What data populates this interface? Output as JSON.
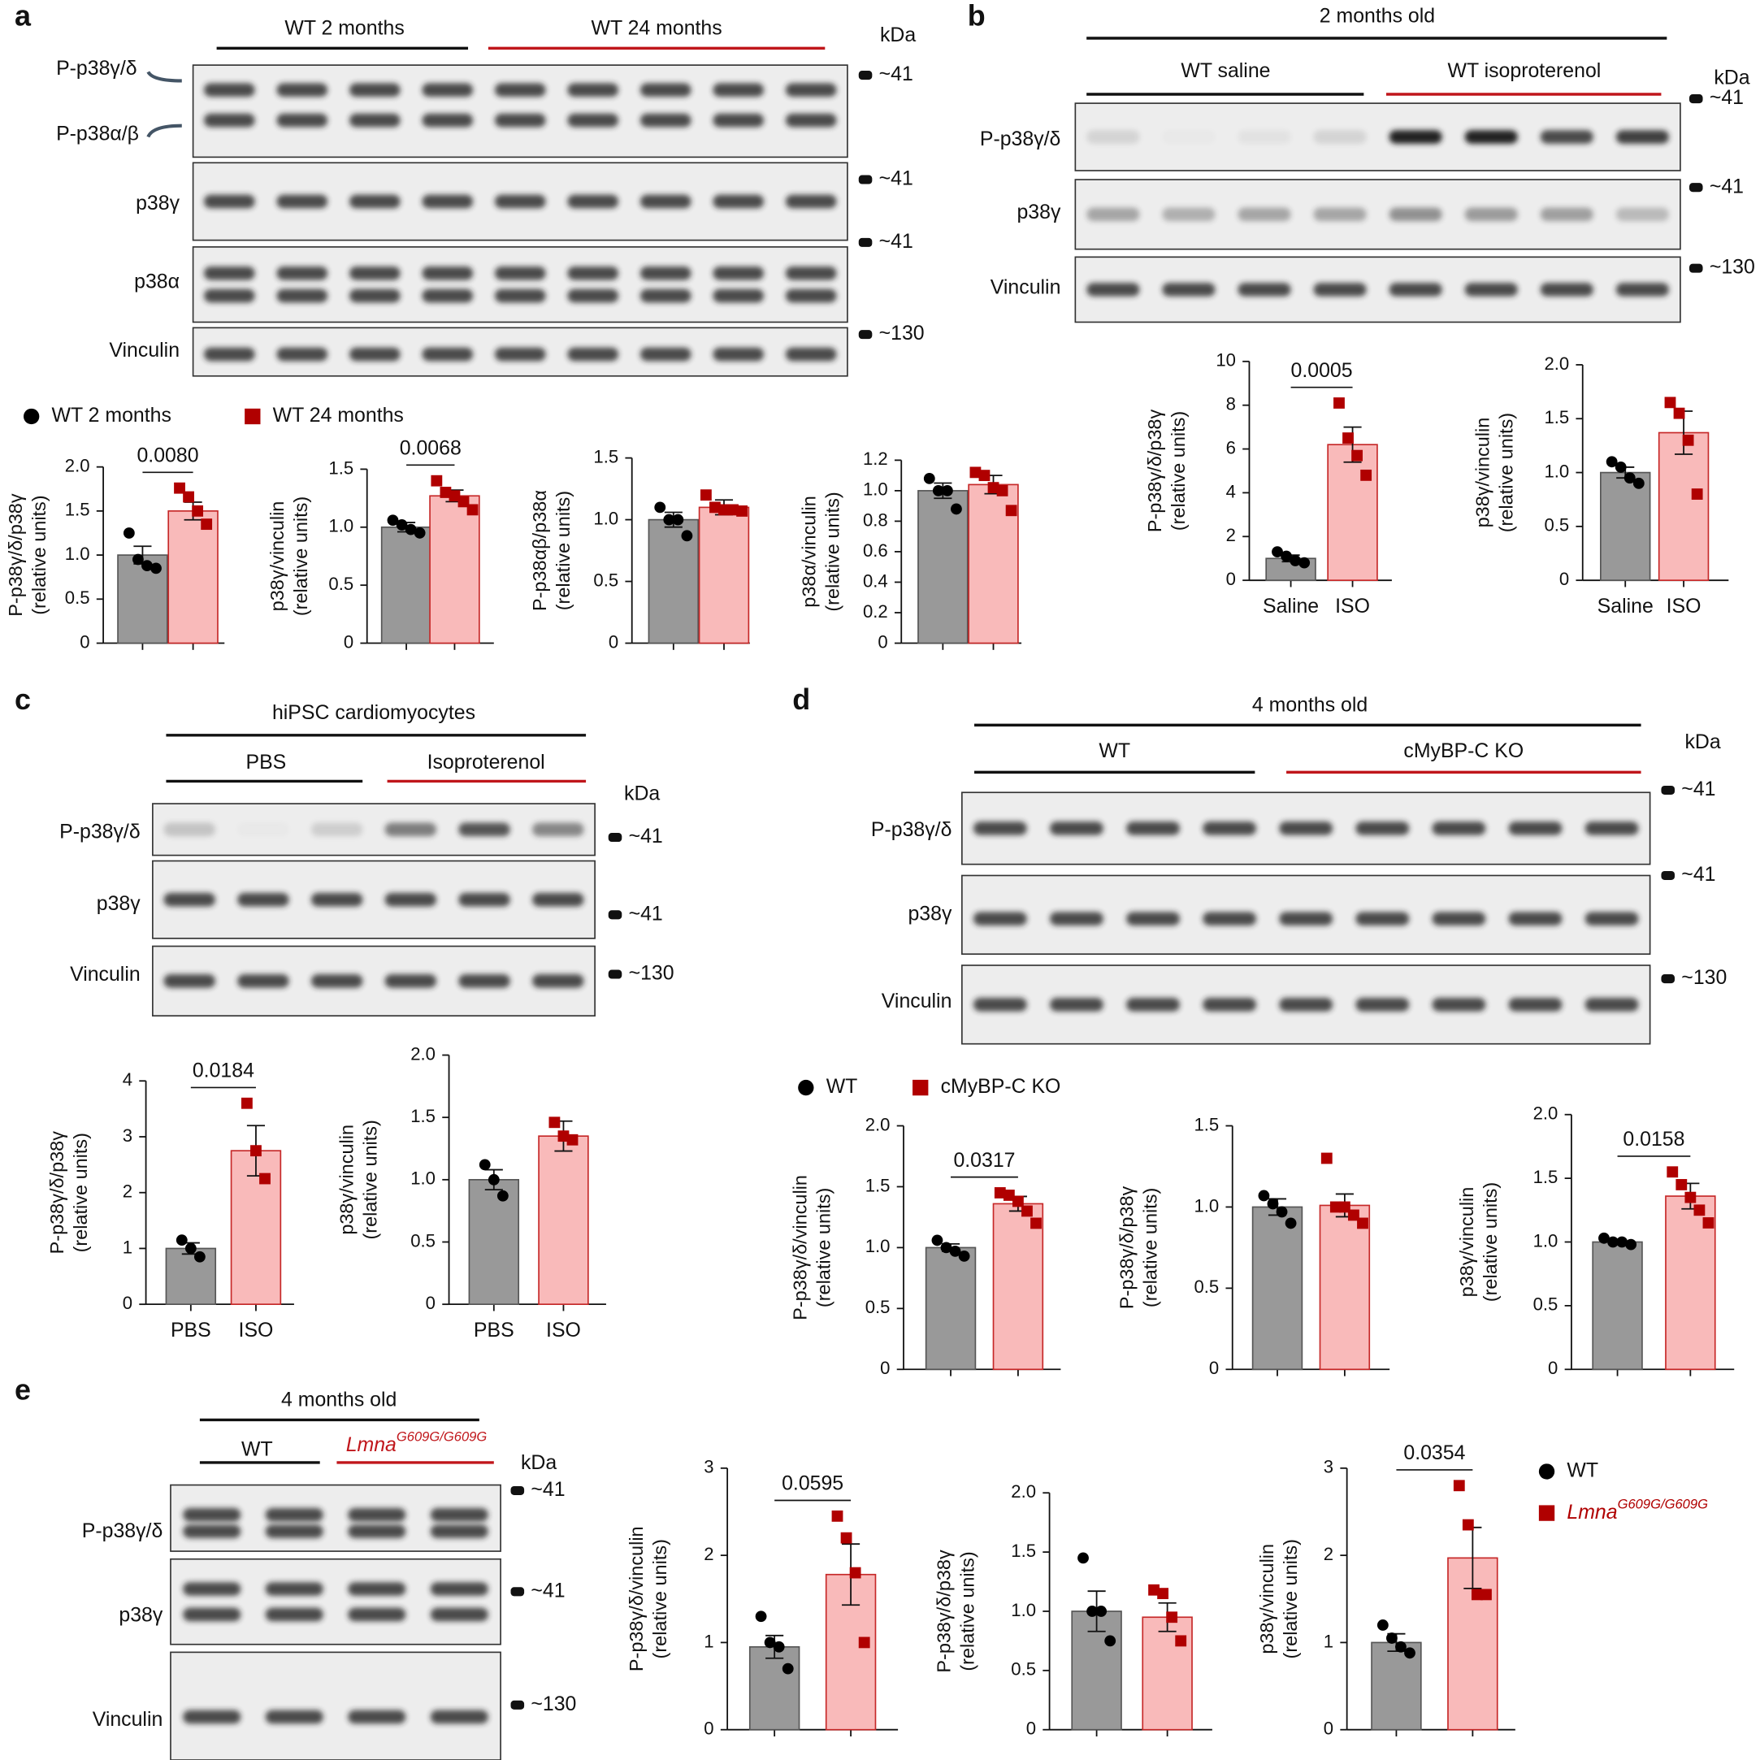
{
  "panels": [
    {
      "label": "a",
      "groups": [
        {
          "name": "WT 2 months",
          "color": "#111111"
        },
        {
          "name": "WT 24 months",
          "color": "#c0161b"
        }
      ],
      "arrow_labels": [
        "P-p38γ/δ",
        "P-p38α/β"
      ],
      "rows": [
        "p38γ",
        "p38α",
        "Vinculin"
      ],
      "markers": [
        "~41",
        "~41",
        "~41",
        "~130"
      ],
      "kda": "kDa"
    },
    {
      "label": "b",
      "title": "2 months old",
      "groups": [
        {
          "name": "WT saline",
          "color": "#111111"
        },
        {
          "name": "WT isoproterenol",
          "color": "#c0161b"
        }
      ],
      "rows": [
        "P-p38γ/δ",
        "p38γ",
        "Vinculin"
      ],
      "markers": [
        "~41",
        "~41",
        "~130"
      ],
      "kda": "kDa"
    },
    {
      "label": "c",
      "title": "hiPSC cardiomyocytes",
      "groups": [
        {
          "name": "PBS",
          "color": "#111111"
        },
        {
          "name": "Isoproterenol",
          "color": "#c0161b"
        }
      ],
      "rows": [
        "P-p38γ/δ",
        "p38γ",
        "Vinculin"
      ],
      "markers": [
        "~41",
        "~41",
        "~130"
      ],
      "kda": "kDa"
    },
    {
      "label": "d",
      "title": "4 months old",
      "groups": [
        {
          "name": "WT",
          "color": "#111111"
        },
        {
          "name": "cMyBP-C KO",
          "color": "#c0161b"
        }
      ],
      "rows": [
        "P-p38γ/δ",
        "p38γ",
        "Vinculin"
      ],
      "markers": [
        "~41",
        "~41",
        "~130"
      ],
      "kda": "kDa"
    },
    {
      "label": "e",
      "title": "4 months old",
      "groups": [
        {
          "name": "WT",
          "color": "#111111"
        },
        {
          "name": "Lmna",
          "superscript": "G609G/G609G",
          "color": "#c0161b"
        }
      ],
      "rows": [
        "P-p38γ/δ",
        "p38γ",
        "Vinculin"
      ],
      "markers": [
        "~41",
        "~41",
        "~130"
      ],
      "kda": "kDa"
    }
  ],
  "legends": [
    {
      "entries": [
        {
          "name": "WT 2 months",
          "marker": "circle",
          "color": "#000000"
        },
        {
          "name": "WT 24 months",
          "marker": "square",
          "color": "#b00000"
        }
      ]
    },
    {
      "entries": [
        {
          "name": "WT",
          "marker": "circle",
          "color": "#000000"
        },
        {
          "name": "cMyBP-C KO",
          "marker": "square",
          "color": "#b00000"
        }
      ]
    },
    {
      "entries": [
        {
          "name": "WT",
          "marker": "circle",
          "color": "#000000"
        },
        {
          "name": "Lmna",
          "superscript": "G609G/G609G",
          "marker": "square",
          "color": "#b00000"
        }
      ]
    }
  ],
  "chart_data": [
    {
      "type": "bar",
      "ylabel": [
        "P-p38γ/δ/p38γ",
        "(relative units)"
      ],
      "categories": [
        null,
        null
      ],
      "values": [
        1.0,
        1.5
      ],
      "errors": [
        0.1,
        0.1
      ],
      "points": [
        [
          1.25,
          0.95,
          0.88,
          0.85
        ],
        [
          1.76,
          1.66,
          1.5,
          1.35
        ]
      ],
      "p_value": "0.0080",
      "ylim": [
        0,
        2
      ],
      "yticks": [
        0,
        0.5,
        {
          "value": 1,
          "label": "1.0"
        },
        1.5,
        {
          "value": 2,
          "label": "2.0"
        }
      ],
      "colors": [
        "#999999",
        "#f9baba"
      ],
      "edge_colors": [
        "#555555",
        "#c62828"
      ],
      "markers": [
        "circle",
        "square"
      ],
      "marker_colors": [
        "#000000",
        "#b00000"
      ]
    },
    {
      "type": "bar",
      "ylabel": [
        "p38γ/vinculin",
        "(relative units)"
      ],
      "categories": [
        null,
        null
      ],
      "values": [
        1.0,
        1.27
      ],
      "errors": [
        0.04,
        0.05
      ],
      "points": [
        [
          1.06,
          1.02,
          0.98,
          0.95
        ],
        [
          1.4,
          1.3,
          1.27,
          1.22,
          1.15
        ]
      ],
      "p_value": "0.0068",
      "ylim": [
        0,
        1.5
      ],
      "yticks": [
        0,
        0.5,
        {
          "value": 1,
          "label": "1.0"
        },
        1.5
      ],
      "colors": [
        "#999999",
        "#f9baba"
      ],
      "edge_colors": [
        "#555555",
        "#c62828"
      ],
      "markers": [
        "circle",
        "square"
      ],
      "marker_colors": [
        "#000000",
        "#b00000"
      ]
    },
    {
      "type": "bar",
      "ylabel": [
        "P-p38αβ/p38α",
        "(relative units)"
      ],
      "categories": [
        null,
        null
      ],
      "values": [
        1.0,
        1.1
      ],
      "errors": [
        0.06,
        0.06
      ],
      "points": [
        [
          1.1,
          1.0,
          1.0,
          0.87
        ],
        [
          1.2,
          1.1,
          1.08,
          1.08,
          1.07
        ]
      ],
      "ylim": [
        0,
        1.5
      ],
      "yticks": [
        0,
        0.5,
        {
          "value": 1,
          "label": "1.0"
        },
        1.5
      ],
      "colors": [
        "#999999",
        "#f9baba"
      ],
      "edge_colors": [
        "#555555",
        "#c62828"
      ],
      "markers": [
        "circle",
        "square"
      ],
      "marker_colors": [
        "#000000",
        "#b00000"
      ]
    },
    {
      "type": "bar",
      "ylabel": [
        "p38α/vinculin",
        "(relative units)"
      ],
      "categories": [
        null,
        null
      ],
      "values": [
        1.0,
        1.04
      ],
      "errors": [
        0.05,
        0.06
      ],
      "points": [
        [
          1.08,
          1.0,
          1.0,
          0.88
        ],
        [
          1.12,
          1.1,
          1.02,
          1.0,
          0.87
        ]
      ],
      "ylim": [
        0,
        1.2
      ],
      "yticks": [
        0,
        0.2,
        0.4,
        0.6,
        0.8,
        {
          "value": 1,
          "label": "1.0"
        },
        1.2
      ],
      "colors": [
        "#999999",
        "#f9baba"
      ],
      "edge_colors": [
        "#555555",
        "#c62828"
      ],
      "markers": [
        "circle",
        "square"
      ],
      "marker_colors": [
        "#000000",
        "#b00000"
      ]
    },
    {
      "type": "bar",
      "ylabel": [
        "P-p38γ/δ/p38γ",
        "(relative units)"
      ],
      "categories": [
        "Saline",
        "ISO"
      ],
      "values": [
        1.0,
        6.2
      ],
      "errors": [
        0.15,
        0.8
      ],
      "points": [
        [
          1.3,
          1.1,
          0.9,
          0.8
        ],
        [
          8.1,
          6.5,
          5.7,
          4.8
        ]
      ],
      "p_value": "0.0005",
      "ylim": [
        0,
        10
      ],
      "yticks": [
        0,
        2,
        4,
        6,
        8,
        10
      ],
      "colors": [
        "#999999",
        "#f9baba"
      ],
      "edge_colors": [
        "#555555",
        "#c62828"
      ],
      "markers": [
        "circle",
        "square"
      ],
      "marker_colors": [
        "#000000",
        "#b00000"
      ]
    },
    {
      "type": "bar",
      "ylabel": [
        "p38γ/vinculin",
        "(relative units)"
      ],
      "categories": [
        "Saline",
        "ISO"
      ],
      "values": [
        1.0,
        1.37
      ],
      "errors": [
        0.05,
        0.2
      ],
      "points": [
        [
          1.1,
          1.05,
          0.95,
          0.9
        ],
        [
          1.65,
          1.55,
          1.3,
          0.8
        ]
      ],
      "ylim": [
        0,
        2
      ],
      "yticks": [
        0,
        0.5,
        {
          "value": 1,
          "label": "1.0"
        },
        1.5,
        {
          "value": 2,
          "label": "2.0"
        }
      ],
      "colors": [
        "#999999",
        "#f9baba"
      ],
      "edge_colors": [
        "#555555",
        "#c62828"
      ],
      "markers": [
        "circle",
        "square"
      ],
      "marker_colors": [
        "#000000",
        "#b00000"
      ]
    },
    {
      "type": "bar",
      "ylabel": [
        "P-p38γ/δ/p38γ",
        "(relative units)"
      ],
      "categories": [
        "PBS",
        "ISO"
      ],
      "values": [
        1.0,
        2.75
      ],
      "errors": [
        0.1,
        0.45
      ],
      "points": [
        [
          1.15,
          1.0,
          0.85
        ],
        [
          3.6,
          2.75,
          2.25
        ]
      ],
      "p_value": "0.0184",
      "ylim": [
        0,
        4
      ],
      "yticks": [
        0,
        1,
        2,
        3,
        4
      ],
      "colors": [
        "#999999",
        "#f9baba"
      ],
      "edge_colors": [
        "#555555",
        "#c62828"
      ],
      "markers": [
        "circle",
        "square"
      ],
      "marker_colors": [
        "#000000",
        "#b00000"
      ]
    },
    {
      "type": "bar",
      "ylabel": [
        "p38γ/vinculin",
        "(relative units)"
      ],
      "categories": [
        "PBS",
        "ISO"
      ],
      "values": [
        1.0,
        1.35
      ],
      "errors": [
        0.08,
        0.12
      ],
      "points": [
        [
          1.12,
          1.0,
          0.87
        ],
        [
          1.46,
          1.35,
          1.32
        ]
      ],
      "ylim": [
        0,
        2
      ],
      "yticks": [
        0,
        0.5,
        {
          "value": 1,
          "label": "1.0"
        },
        1.5,
        {
          "value": 2,
          "label": "2.0"
        }
      ],
      "colors": [
        "#999999",
        "#f9baba"
      ],
      "edge_colors": [
        "#555555",
        "#c62828"
      ],
      "markers": [
        "circle",
        "square"
      ],
      "marker_colors": [
        "#000000",
        "#b00000"
      ]
    },
    {
      "type": "bar",
      "ylabel": [
        "P-p38γ/δ/vinculin",
        "(relative units)"
      ],
      "categories": [
        null,
        null
      ],
      "values": [
        1.0,
        1.36
      ],
      "errors": [
        0.03,
        0.06
      ],
      "points": [
        [
          1.06,
          1.0,
          0.97,
          0.93
        ],
        [
          1.45,
          1.43,
          1.38,
          1.3,
          1.2
        ]
      ],
      "p_value": "0.0317",
      "ylim": [
        0,
        2
      ],
      "yticks": [
        0,
        0.5,
        {
          "value": 1,
          "label": "1.0"
        },
        1.5,
        {
          "value": 2,
          "label": "2.0"
        }
      ],
      "colors": [
        "#999999",
        "#f9baba"
      ],
      "edge_colors": [
        "#555555",
        "#c62828"
      ],
      "markers": [
        "circle",
        "square"
      ],
      "marker_colors": [
        "#000000",
        "#b00000"
      ]
    },
    {
      "type": "bar",
      "ylabel": [
        "P-p38γ/δ/p38γ",
        "(relative units)"
      ],
      "categories": [
        null,
        null
      ],
      "values": [
        1.0,
        1.01
      ],
      "errors": [
        0.05,
        0.07
      ],
      "points": [
        [
          1.07,
          1.02,
          0.97,
          0.9
        ],
        [
          1.3,
          1.0,
          1.0,
          0.95,
          0.9
        ]
      ],
      "ylim": [
        0,
        1.5
      ],
      "yticks": [
        0,
        0.5,
        {
          "value": 1,
          "label": "1.0"
        },
        1.5
      ],
      "colors": [
        "#999999",
        "#f9baba"
      ],
      "edge_colors": [
        "#555555",
        "#c62828"
      ],
      "markers": [
        "circle",
        "square"
      ],
      "marker_colors": [
        "#000000",
        "#b00000"
      ]
    },
    {
      "type": "bar",
      "ylabel": [
        "p38γ/vinculin",
        "(relative units)"
      ],
      "categories": [
        null,
        null
      ],
      "values": [
        1.0,
        1.36
      ],
      "errors": [
        0.02,
        0.1
      ],
      "points": [
        [
          1.03,
          1.0,
          1.0,
          0.98
        ],
        [
          1.55,
          1.45,
          1.35,
          1.25,
          1.15
        ]
      ],
      "p_value": "0.0158",
      "ylim": [
        0,
        2
      ],
      "yticks": [
        0,
        0.5,
        {
          "value": 1,
          "label": "1.0"
        },
        1.5,
        {
          "value": 2,
          "label": "2.0"
        }
      ],
      "colors": [
        "#999999",
        "#f9baba"
      ],
      "edge_colors": [
        "#555555",
        "#c62828"
      ],
      "markers": [
        "circle",
        "square"
      ],
      "marker_colors": [
        "#000000",
        "#b00000"
      ]
    },
    {
      "type": "bar",
      "ylabel": [
        "P-p38γ/δ/vinculin",
        "(relative units)"
      ],
      "categories": [
        null,
        null
      ],
      "values": [
        0.95,
        1.78
      ],
      "errors": [
        0.13,
        0.35
      ],
      "points": [
        [
          1.3,
          1.0,
          0.95,
          0.7
        ],
        [
          2.45,
          2.2,
          1.8,
          1.0
        ]
      ],
      "p_value": "0.0595",
      "ylim": [
        0,
        3
      ],
      "yticks": [
        0,
        1,
        2,
        3
      ],
      "colors": [
        "#999999",
        "#f9baba"
      ],
      "edge_colors": [
        "#555555",
        "#c62828"
      ],
      "markers": [
        "circle",
        "square"
      ],
      "marker_colors": [
        "#000000",
        "#b00000"
      ]
    },
    {
      "type": "bar",
      "ylabel": [
        "P-p38γ/δ/p38γ",
        "(relative units)"
      ],
      "categories": [
        null,
        null
      ],
      "values": [
        1.0,
        0.95
      ],
      "errors": [
        0.17,
        0.12
      ],
      "points": [
        [
          1.45,
          1.0,
          1.0,
          0.75
        ],
        [
          1.18,
          1.15,
          0.95,
          0.75
        ]
      ],
      "ylim": [
        0,
        2
      ],
      "yticks": [
        0,
        0.5,
        {
          "value": 1,
          "label": "1.0"
        },
        1.5,
        {
          "value": 2,
          "label": "2.0"
        }
      ],
      "colors": [
        "#999999",
        "#f9baba"
      ],
      "edge_colors": [
        "#555555",
        "#c62828"
      ],
      "markers": [
        "circle",
        "square"
      ],
      "marker_colors": [
        "#000000",
        "#b00000"
      ]
    },
    {
      "type": "bar",
      "ylabel": [
        "p38γ/vinculin",
        "(relative units)"
      ],
      "categories": [
        null,
        null
      ],
      "values": [
        1.0,
        1.97
      ],
      "errors": [
        0.1,
        0.35
      ],
      "points": [
        [
          1.2,
          1.05,
          0.95,
          0.88
        ],
        [
          2.8,
          2.35,
          1.55,
          1.55
        ]
      ],
      "p_value": "0.0354",
      "ylim": [
        0,
        3
      ],
      "yticks": [
        0,
        1,
        2,
        3
      ],
      "colors": [
        "#999999",
        "#f9baba"
      ],
      "edge_colors": [
        "#555555",
        "#c62828"
      ],
      "markers": [
        "circle",
        "square"
      ],
      "marker_colors": [
        "#000000",
        "#b00000"
      ]
    }
  ]
}
